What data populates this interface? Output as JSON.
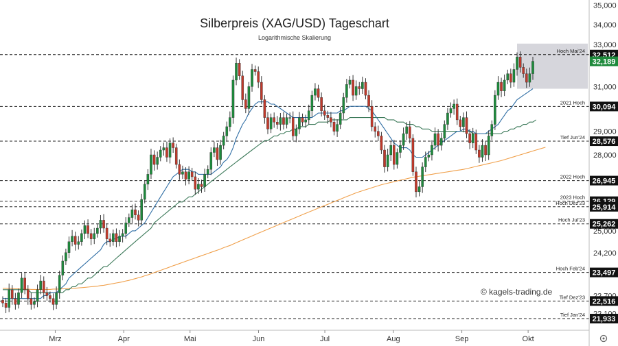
{
  "chart_data": {
    "type": "candlestick",
    "title": "Silberpreis (XAG/USD) Tageschart",
    "subtitle": "Logarithmische Skalierung",
    "watermark": "© kagels-trading.de",
    "scale": "log",
    "ylim": [
      21.6,
      35.2
    ],
    "y_ticks": [
      "35,000",
      "34,000",
      "33,000",
      "31,000",
      "29,000",
      "28,000",
      "25,000",
      "24,200",
      "22,700",
      "22,100"
    ],
    "y_tick_values": [
      35.0,
      34.0,
      33.0,
      31.0,
      29.0,
      28.0,
      25.0,
      24.2,
      22.7,
      22.1
    ],
    "x_labels": [
      "Mrz",
      "Apr",
      "Mai",
      "Jun",
      "Jul",
      "Aug",
      "Sep",
      "Okt"
    ],
    "x_label_dates": [
      "2024-03-01",
      "2024-04-01",
      "2024-05-01",
      "2024-06-01",
      "2024-07-01",
      "2024-08-01",
      "2024-09-01",
      "2024-10-01"
    ],
    "x_range": [
      "2024-02-05",
      "2024-10-28"
    ],
    "levels": [
      {
        "name": "Hoch Mai'24",
        "value": 32.512,
        "label": "32,512"
      },
      {
        "name": "2021 Hoch",
        "value": 30.094,
        "label": "30,094"
      },
      {
        "name": "Tief Jun'24",
        "value": 28.576,
        "label": "28,576"
      },
      {
        "name": "2022 Hoch",
        "value": 26.945,
        "label": "26,945"
      },
      {
        "name": "2023 Hoch",
        "value": 26.129,
        "label": "26,129"
      },
      {
        "name": "Hoch Dez'23",
        "value": 25.914,
        "label": "25,914"
      },
      {
        "name": "Hoch Jul'23",
        "value": 25.262,
        "label": "25,262"
      },
      {
        "name": "Hoch Feb'24",
        "value": 23.497,
        "label": "23,497"
      },
      {
        "name": "Tief Dez'23",
        "value": 22.516,
        "label": "22,516"
      },
      {
        "name": "Tief Jan'24",
        "value": 21.933,
        "label": "21,933"
      }
    ],
    "current_price": {
      "value": 32.189,
      "label": "32,189"
    },
    "colors": {
      "up": "#1e8a3c",
      "down": "#c0392b",
      "ma20": "#2e6da4",
      "ma50": "#3d7a5a",
      "ma200": "#f0a04b",
      "price_badge": "#1e8a3c",
      "level_badge": "#111111",
      "zone": "#d6d6dc"
    },
    "highlight_zone": {
      "from": "2024-09-26",
      "to": "2024-10-28",
      "low": 30.9,
      "high": 33.05
    },
    "closes": [
      22.45,
      22.3,
      22.9,
      22.6,
      22.4,
      22.8,
      23.3,
      22.9,
      22.6,
      22.4,
      22.5,
      22.9,
      23.2,
      22.8,
      22.7,
      22.6,
      22.4,
      22.8,
      23.4,
      23.9,
      24.2,
      24.6,
      24.8,
      24.5,
      24.6,
      24.9,
      25.2,
      24.9,
      24.7,
      24.9,
      25.1,
      25.4,
      25.1,
      24.7,
      24.6,
      24.9,
      24.6,
      24.8,
      24.9,
      25.3,
      25.5,
      25.8,
      25.6,
      25.4,
      26.2,
      26.8,
      27.2,
      28.0,
      27.6,
      27.9,
      28.2,
      28.3,
      27.9,
      28.5,
      28.3,
      27.6,
      27.2,
      27.3,
      27.0,
      27.3,
      27.1,
      26.6,
      26.8,
      26.7,
      27.2,
      27.4,
      28.1,
      28.3,
      27.8,
      28.4,
      28.8,
      29.2,
      29.6,
      31.3,
      32.1,
      31.5,
      30.4,
      30.0,
      31.0,
      31.8,
      31.7,
      31.2,
      30.4,
      29.6,
      29.1,
      29.6,
      29.4,
      29.3,
      29.6,
      29.3,
      29.6,
      29.6,
      28.8,
      29.1,
      29.6,
      29.4,
      29.5,
      29.9,
      30.6,
      30.9,
      30.5,
      29.9,
      29.7,
      29.6,
      29.4,
      29.0,
      29.3,
      29.8,
      30.5,
      31.1,
      31.3,
      30.6,
      31.0,
      30.9,
      31.2,
      30.6,
      30.1,
      29.2,
      29.0,
      28.8,
      28.2,
      27.5,
      28.0,
      28.4,
      27.6,
      28.1,
      28.4,
      28.9,
      29.2,
      28.7,
      27.3,
      26.5,
      26.7,
      27.5,
      27.9,
      28.0,
      28.4,
      28.9,
      28.4,
      28.7,
      29.3,
      29.8,
      30.0,
      30.2,
      29.5,
      29.2,
      29.6,
      28.9,
      28.5,
      28.9,
      28.2,
      27.9,
      28.4,
      28.0,
      28.8,
      29.3,
      30.6,
      31.2,
      30.8,
      31.3,
      31.6,
      31.2,
      31.8,
      32.4,
      31.9,
      31.6,
      31.2,
      31.6,
      32.19
    ],
    "ma20": [
      22.6,
      22.6,
      22.6,
      22.6,
      22.6,
      22.6,
      22.6,
      22.6,
      22.6,
      22.6,
      22.6,
      22.6,
      22.6,
      22.7,
      22.7,
      22.8,
      22.8,
      22.8,
      22.9,
      23.0,
      23.1,
      23.3,
      23.4,
      23.5,
      23.6,
      23.7,
      23.8,
      23.9,
      24.0,
      24.1,
      24.2,
      24.3,
      24.5,
      24.6,
      24.6,
      24.7,
      24.7,
      24.8,
      24.8,
      24.8,
      24.9,
      25.0,
      25.0,
      25.1,
      25.2,
      25.3,
      25.5,
      25.7,
      25.9,
      26.1,
      26.3,
      26.5,
      26.7,
      26.9,
      27.1,
      27.2,
      27.3,
      27.4,
      27.4,
      27.4,
      27.3,
      27.3,
      27.2,
      27.2,
      27.2,
      27.2,
      27.2,
      27.3,
      27.4,
      27.5,
      27.7,
      27.8,
      28.0,
      28.3,
      28.7,
      29.0,
      29.3,
      29.5,
      29.8,
      30.0,
      30.2,
      30.3,
      30.3,
      30.3,
      30.3,
      30.2,
      30.2,
      30.1,
      30.0,
      29.9,
      29.8,
      29.7,
      29.6,
      29.6,
      29.6,
      29.6,
      29.6,
      29.6,
      29.6,
      29.7,
      29.8,
      29.8,
      29.8,
      29.8,
      29.8,
      29.8,
      29.8,
      29.9,
      29.9,
      30.0,
      30.1,
      30.1,
      30.1,
      30.1,
      30.1,
      30.1,
      30.0,
      29.9,
      29.7,
      29.5,
      29.3,
      29.1,
      28.9,
      28.7,
      28.5,
      28.4,
      28.3,
      28.3,
      28.3,
      28.2,
      28.0,
      27.9,
      27.9,
      27.9,
      28.0,
      28.1,
      28.2,
      28.3,
      28.4,
      28.5,
      28.6,
      28.7,
      28.8,
      28.9,
      29.0,
      29.0,
      29.1,
      29.1,
      29.0,
      29.0,
      28.9,
      28.9,
      28.9,
      28.9,
      29.0,
      29.1,
      29.2,
      29.3,
      29.5,
      29.7,
      29.9,
      30.0,
      30.2,
      30.4,
      30.5,
      30.6,
      30.7,
      30.8,
      30.9
    ],
    "ma50": [
      22.9,
      22.9,
      22.9,
      22.9,
      22.9,
      22.9,
      22.9,
      22.9,
      22.9,
      22.8,
      22.8,
      22.8,
      22.8,
      22.8,
      22.8,
      22.8,
      22.8,
      22.8,
      22.8,
      22.8,
      22.9,
      22.9,
      23.0,
      23.0,
      23.1,
      23.1,
      23.2,
      23.3,
      23.3,
      23.4,
      23.5,
      23.6,
      23.7,
      23.7,
      23.8,
      23.9,
      24.0,
      24.1,
      24.2,
      24.3,
      24.4,
      24.5,
      24.6,
      24.7,
      24.8,
      24.9,
      25.0,
      25.1,
      25.3,
      25.4,
      25.5,
      25.6,
      25.7,
      25.8,
      25.9,
      26.0,
      26.1,
      26.1,
      26.2,
      26.3,
      26.3,
      26.4,
      26.5,
      26.6,
      26.7,
      26.8,
      26.9,
      27.0,
      27.1,
      27.2,
      27.3,
      27.4,
      27.5,
      27.6,
      27.7,
      27.8,
      27.9,
      28.0,
      28.1,
      28.2,
      28.3,
      28.4,
      28.5,
      28.6,
      28.6,
      28.7,
      28.8,
      28.8,
      28.9,
      28.9,
      29.0,
      29.0,
      29.1,
      29.1,
      29.2,
      29.2,
      29.2,
      29.3,
      29.3,
      29.3,
      29.4,
      29.4,
      29.4,
      29.4,
      29.5,
      29.5,
      29.5,
      29.5,
      29.5,
      29.5,
      29.6,
      29.6,
      29.6,
      29.6,
      29.6,
      29.6,
      29.6,
      29.6,
      29.6,
      29.6,
      29.6,
      29.6,
      29.5,
      29.5,
      29.5,
      29.4,
      29.4,
      29.4,
      29.3,
      29.3,
      29.3,
      29.2,
      29.2,
      29.1,
      29.1,
      29.1,
      29.0,
      29.0,
      29.0,
      29.0,
      29.0,
      29.0,
      29.0,
      29.0,
      29.0,
      29.0,
      29.0,
      29.0,
      29.0,
      28.9,
      28.9,
      28.9,
      28.9,
      28.9,
      28.9,
      28.9,
      28.9,
      28.9,
      28.9,
      29.0,
      29.0,
      29.1,
      29.1,
      29.2,
      29.2,
      29.3,
      29.3,
      29.4,
      29.4,
      29.5
    ],
    "ma200": [
      22.95,
      22.95,
      22.94,
      22.94,
      22.93,
      22.93,
      22.92,
      22.92,
      22.92,
      22.91,
      22.91,
      22.91,
      22.91,
      22.91,
      22.91,
      22.91,
      22.92,
      22.92,
      22.92,
      22.93,
      22.93,
      22.94,
      22.95,
      22.95,
      22.96,
      22.97,
      22.98,
      22.99,
      23.0,
      23.01,
      23.02,
      23.04,
      23.05,
      23.07,
      23.09,
      23.11,
      23.13,
      23.15,
      23.17,
      23.2,
      23.22,
      23.25,
      23.28,
      23.31,
      23.34,
      23.38,
      23.41,
      23.45,
      23.49,
      23.53,
      23.57,
      23.61,
      23.65,
      23.69,
      23.73,
      23.77,
      23.81,
      23.85,
      23.89,
      23.93,
      23.97,
      24.01,
      24.05,
      24.09,
      24.13,
      24.17,
      24.21,
      24.25,
      24.29,
      24.33,
      24.38,
      24.42,
      24.46,
      24.51,
      24.56,
      24.61,
      24.66,
      24.71,
      24.76,
      24.81,
      24.86,
      24.91,
      24.96,
      25.01,
      25.06,
      25.11,
      25.16,
      25.21,
      25.26,
      25.31,
      25.36,
      25.41,
      25.46,
      25.51,
      25.56,
      25.61,
      25.66,
      25.71,
      25.76,
      25.81,
      25.86,
      25.91,
      25.96,
      26.01,
      26.06,
      26.11,
      26.16,
      26.21,
      26.26,
      26.31,
      26.36,
      26.41,
      26.46,
      26.5,
      26.54,
      26.58,
      26.62,
      26.66,
      26.7,
      26.74,
      26.78,
      26.81,
      26.84,
      26.87,
      26.9,
      26.93,
      26.96,
      26.99,
      27.02,
      27.05,
      27.08,
      27.1,
      27.12,
      27.14,
      27.16,
      27.18,
      27.2,
      27.22,
      27.24,
      27.26,
      27.28,
      27.3,
      27.32,
      27.34,
      27.36,
      27.38,
      27.4,
      27.43,
      27.46,
      27.49,
      27.52,
      27.55,
      27.58,
      27.61,
      27.64,
      27.67,
      27.7,
      27.73,
      27.76,
      27.8,
      27.84,
      27.88,
      27.92,
      27.96,
      28.0,
      28.04,
      28.08,
      28.12,
      28.16,
      28.2,
      28.24,
      28.28,
      28.32
    ]
  }
}
